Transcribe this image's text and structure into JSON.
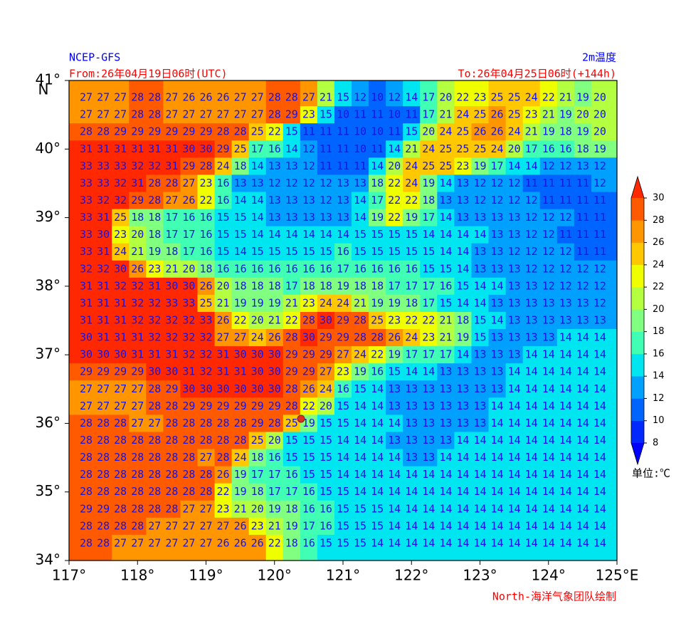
{
  "chart_data": {
    "type": "heatmap",
    "source": "NCEP-GFS",
    "title": "2m温度",
    "from_time": "From:26年04月19日06时(UTC)",
    "to_time": "To:26年04月25日06时(+144h)",
    "credit": "North-海洋气象团队绘制",
    "unit_label": "单位:℃",
    "y_hemisphere": "N",
    "xlim": [
      117,
      125
    ],
    "ylim": [
      34,
      41
    ],
    "xticks": [
      {
        "value": 117,
        "label": "117°"
      },
      {
        "value": 118,
        "label": "118°"
      },
      {
        "value": 119,
        "label": "119°"
      },
      {
        "value": 120,
        "label": "120°"
      },
      {
        "value": 121,
        "label": "121°"
      },
      {
        "value": 122,
        "label": "122°"
      },
      {
        "value": 123,
        "label": "123°"
      },
      {
        "value": 124,
        "label": "124°"
      },
      {
        "value": 125,
        "label": "125°E"
      }
    ],
    "yticks": [
      {
        "value": 34,
        "label": "34°"
      },
      {
        "value": 35,
        "label": "35°"
      },
      {
        "value": 36,
        "label": "36°"
      },
      {
        "value": 37,
        "label": "37°"
      },
      {
        "value": 38,
        "label": "38°"
      },
      {
        "value": 39,
        "label": "39°"
      },
      {
        "value": 40,
        "label": "40°"
      },
      {
        "value": 41,
        "label": "41°"
      }
    ],
    "x": [
      117.25,
      117.5,
      117.75,
      118,
      118.25,
      118.5,
      118.75,
      119,
      119.25,
      119.5,
      119.75,
      120,
      120.25,
      120.5,
      120.75,
      121,
      121.25,
      121.5,
      121.75,
      122,
      122.25,
      122.5,
      122.75,
      123,
      123.25,
      123.5,
      123.75,
      124,
      124.25,
      124.5,
      124.75
    ],
    "y": [
      40.75,
      40.5,
      40.25,
      40,
      39.75,
      39.5,
      39.25,
      39,
      38.75,
      38.5,
      38.25,
      38,
      37.75,
      37.5,
      37.25,
      37,
      36.75,
      36.5,
      36.25,
      36,
      35.75,
      35.5,
      35.25,
      35,
      34.75,
      34.5,
      34.25
    ],
    "levels": [
      8,
      10,
      12,
      14,
      16,
      18,
      20,
      22,
      24,
      26,
      28,
      30
    ],
    "colors": [
      "#0000ff",
      "#0028ff",
      "#0064ff",
      "#00a0ff",
      "#00e6f0",
      "#40ffb4",
      "#80ff80",
      "#b4ff40",
      "#f0ff00",
      "#ffc800",
      "#ff9600",
      "#ff5a00",
      "#ff2800"
    ],
    "values": [
      [
        27,
        27,
        27,
        28,
        28,
        27,
        26,
        26,
        26,
        27,
        27,
        28,
        28,
        27,
        21,
        15,
        12,
        10,
        12,
        14,
        17,
        20,
        22,
        23,
        25,
        25,
        24,
        22,
        21,
        19,
        20
      ],
      [
        27,
        27,
        27,
        28,
        28,
        27,
        27,
        27,
        27,
        27,
        27,
        28,
        29,
        23,
        15,
        10,
        11,
        11,
        10,
        11,
        17,
        21,
        24,
        25,
        26,
        25,
        23,
        21,
        19,
        20,
        20
      ],
      [
        28,
        28,
        29,
        29,
        29,
        29,
        29,
        29,
        28,
        28,
        25,
        22,
        15,
        11,
        11,
        11,
        10,
        10,
        11,
        15,
        20,
        24,
        25,
        26,
        26,
        24,
        21,
        19,
        18,
        19,
        20
      ],
      [
        31,
        31,
        31,
        31,
        31,
        31,
        30,
        30,
        29,
        25,
        17,
        16,
        14,
        12,
        11,
        11,
        10,
        11,
        14,
        21,
        24,
        25,
        25,
        25,
        24,
        20,
        17,
        16,
        16,
        18,
        19
      ],
      [
        33,
        33,
        33,
        32,
        32,
        31,
        29,
        28,
        24,
        18,
        14,
        13,
        13,
        12,
        11,
        11,
        11,
        14,
        20,
        24,
        25,
        25,
        23,
        19,
        17,
        14,
        14,
        12,
        12,
        13,
        12
      ],
      [
        33,
        33,
        32,
        31,
        28,
        28,
        27,
        23,
        16,
        13,
        13,
        12,
        12,
        12,
        12,
        13,
        13,
        18,
        22,
        24,
        19,
        14,
        13,
        12,
        12,
        12,
        11,
        11,
        11,
        11,
        12
      ],
      [
        33,
        32,
        32,
        29,
        28,
        27,
        26,
        22,
        16,
        14,
        14,
        13,
        13,
        13,
        12,
        13,
        14,
        17,
        22,
        22,
        18,
        13,
        13,
        12,
        12,
        12,
        12,
        11,
        11,
        11,
        11
      ],
      [
        33,
        31,
        25,
        18,
        18,
        17,
        16,
        16,
        15,
        15,
        14,
        13,
        13,
        13,
        13,
        13,
        14,
        19,
        22,
        19,
        17,
        14,
        13,
        13,
        13,
        13,
        12,
        12,
        12,
        11,
        11
      ],
      [
        33,
        30,
        23,
        20,
        18,
        17,
        17,
        16,
        15,
        15,
        14,
        14,
        14,
        14,
        14,
        14,
        15,
        15,
        15,
        15,
        14,
        14,
        14,
        14,
        13,
        13,
        12,
        12,
        11,
        11,
        11
      ],
      [
        33,
        31,
        24,
        21,
        19,
        18,
        17,
        16,
        15,
        14,
        15,
        15,
        15,
        15,
        15,
        16,
        15,
        15,
        15,
        15,
        15,
        14,
        14,
        13,
        13,
        12,
        12,
        12,
        12,
        11,
        11
      ],
      [
        32,
        32,
        30,
        26,
        23,
        21,
        20,
        18,
        16,
        16,
        16,
        16,
        16,
        16,
        16,
        17,
        16,
        16,
        16,
        16,
        15,
        15,
        14,
        13,
        13,
        13,
        12,
        12,
        12,
        12,
        12
      ],
      [
        31,
        31,
        32,
        32,
        31,
        30,
        30,
        26,
        20,
        18,
        18,
        18,
        17,
        18,
        18,
        19,
        18,
        18,
        17,
        17,
        17,
        16,
        15,
        14,
        14,
        13,
        13,
        12,
        12,
        12,
        12
      ],
      [
        31,
        31,
        31,
        32,
        32,
        33,
        33,
        25,
        21,
        19,
        19,
        19,
        21,
        23,
        24,
        24,
        21,
        19,
        19,
        18,
        17,
        15,
        14,
        14,
        13,
        13,
        13,
        13,
        13,
        13,
        12
      ],
      [
        31,
        31,
        31,
        32,
        32,
        32,
        32,
        33,
        26,
        22,
        20,
        21,
        22,
        28,
        30,
        29,
        28,
        25,
        23,
        22,
        22,
        21,
        18,
        15,
        14,
        13,
        13,
        13,
        13,
        13,
        13
      ],
      [
        30,
        31,
        31,
        31,
        32,
        32,
        32,
        32,
        27,
        27,
        24,
        26,
        28,
        30,
        29,
        29,
        28,
        28,
        26,
        24,
        23,
        21,
        19,
        15,
        13,
        13,
        13,
        13,
        14,
        14,
        14
      ],
      [
        30,
        30,
        30,
        31,
        31,
        31,
        32,
        32,
        31,
        30,
        30,
        30,
        29,
        29,
        29,
        27,
        24,
        22,
        19,
        17,
        17,
        17,
        14,
        13,
        13,
        13,
        14,
        14,
        14,
        14,
        14
      ],
      [
        29,
        29,
        29,
        29,
        30,
        30,
        31,
        32,
        31,
        31,
        30,
        30,
        29,
        29,
        27,
        23,
        19,
        16,
        15,
        14,
        14,
        13,
        13,
        13,
        13,
        14,
        14,
        14,
        14,
        14,
        14
      ],
      [
        27,
        27,
        27,
        27,
        28,
        29,
        30,
        30,
        30,
        30,
        30,
        30,
        28,
        26,
        24,
        16,
        15,
        14,
        13,
        13,
        13,
        13,
        13,
        13,
        13,
        14,
        14,
        14,
        14,
        14,
        14
      ],
      [
        27,
        27,
        27,
        27,
        28,
        28,
        29,
        29,
        29,
        29,
        29,
        29,
        28,
        22,
        20,
        15,
        14,
        14,
        13,
        13,
        13,
        13,
        13,
        13,
        14,
        14,
        14,
        14,
        14,
        14,
        14
      ],
      [
        28,
        28,
        28,
        27,
        27,
        28,
        28,
        28,
        28,
        28,
        29,
        28,
        25,
        19,
        15,
        15,
        14,
        14,
        14,
        13,
        13,
        13,
        13,
        13,
        14,
        14,
        14,
        14,
        14,
        14,
        14
      ],
      [
        28,
        28,
        28,
        28,
        28,
        28,
        28,
        28,
        28,
        28,
        25,
        20,
        15,
        15,
        15,
        14,
        14,
        14,
        13,
        13,
        13,
        13,
        14,
        14,
        14,
        14,
        14,
        14,
        14,
        14,
        14
      ],
      [
        28,
        28,
        28,
        28,
        28,
        28,
        28,
        27,
        28,
        24,
        18,
        16,
        15,
        15,
        15,
        14,
        14,
        14,
        14,
        13,
        13,
        14,
        14,
        14,
        14,
        14,
        14,
        14,
        14,
        14,
        14
      ],
      [
        28,
        28,
        28,
        28,
        28,
        28,
        28,
        28,
        26,
        19,
        17,
        17,
        16,
        15,
        15,
        14,
        14,
        14,
        14,
        14,
        14,
        14,
        14,
        14,
        14,
        14,
        14,
        14,
        14,
        14,
        14
      ],
      [
        28,
        28,
        28,
        28,
        28,
        28,
        28,
        28,
        22,
        19,
        18,
        17,
        17,
        16,
        15,
        15,
        14,
        14,
        14,
        14,
        14,
        14,
        14,
        14,
        14,
        14,
        14,
        14,
        14,
        14,
        14
      ],
      [
        29,
        29,
        28,
        28,
        28,
        28,
        27,
        27,
        23,
        21,
        20,
        19,
        18,
        16,
        16,
        15,
        15,
        15,
        14,
        14,
        14,
        14,
        14,
        14,
        14,
        14,
        14,
        14,
        14,
        14,
        14
      ],
      [
        28,
        28,
        28,
        28,
        27,
        27,
        27,
        27,
        27,
        26,
        23,
        21,
        19,
        17,
        16,
        15,
        15,
        15,
        14,
        14,
        14,
        14,
        14,
        14,
        14,
        14,
        14,
        14,
        14,
        14,
        14
      ],
      [
        28,
        28,
        27,
        27,
        27,
        27,
        27,
        27,
        26,
        26,
        26,
        22,
        18,
        16,
        15,
        15,
        15,
        14,
        14,
        14,
        14,
        14,
        14,
        14,
        14,
        14,
        14,
        14,
        14,
        14,
        14
      ]
    ]
  }
}
